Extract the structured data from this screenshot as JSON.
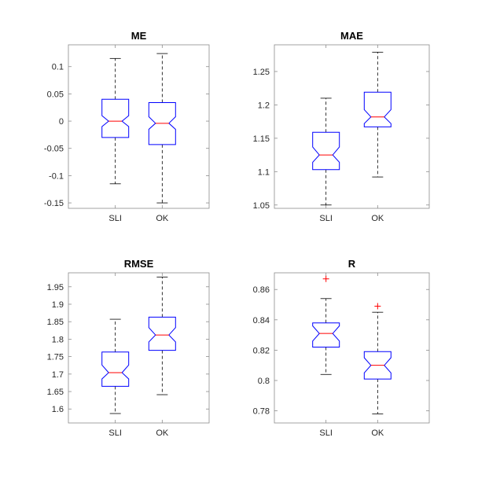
{
  "colors": {
    "box": "#0000ff",
    "median": "#ff0000",
    "whisker": "#000000",
    "outlier": "#ff0000"
  },
  "chart_data": [
    {
      "type": "boxplot",
      "title": "ME",
      "categories": [
        "SLI",
        "OK"
      ],
      "ylim": [
        -0.16,
        0.14
      ],
      "yticks": [
        -0.15,
        -0.1,
        -0.05,
        0,
        0.05,
        0.1
      ],
      "ytick_labels": [
        "-0.15",
        "-0.1",
        "-0.05",
        "0",
        "0.05",
        "0.1"
      ],
      "boxes": [
        {
          "whisker_low": -0.115,
          "q1": -0.03,
          "median": 0.0,
          "q3": 0.04,
          "whisker_high": 0.115,
          "notch_low": -0.01,
          "notch_high": 0.01,
          "outliers": []
        },
        {
          "whisker_low": -0.15,
          "q1": -0.043,
          "median": -0.004,
          "q3": 0.034,
          "whisker_high": 0.124,
          "notch_low": -0.015,
          "notch_high": 0.008,
          "outliers": []
        }
      ]
    },
    {
      "type": "boxplot",
      "title": "MAE",
      "categories": [
        "SLI",
        "OK"
      ],
      "ylim": [
        1.045,
        1.29
      ],
      "yticks": [
        1.05,
        1.1,
        1.15,
        1.2,
        1.25
      ],
      "ytick_labels": [
        "1.05",
        "1.1",
        "1.15",
        "1.2",
        "1.25"
      ],
      "boxes": [
        {
          "whisker_low": 1.05,
          "q1": 1.103,
          "median": 1.125,
          "q3": 1.159,
          "whisker_high": 1.21,
          "notch_low": 1.114,
          "notch_high": 1.137,
          "outliers": []
        },
        {
          "whisker_low": 1.092,
          "q1": 1.167,
          "median": 1.182,
          "q3": 1.219,
          "whisker_high": 1.279,
          "notch_low": 1.172,
          "notch_high": 1.193,
          "outliers": []
        }
      ]
    },
    {
      "type": "boxplot",
      "title": "RMSE",
      "categories": [
        "SLI",
        "OK"
      ],
      "ylim": [
        1.56,
        1.99
      ],
      "yticks": [
        1.6,
        1.65,
        1.7,
        1.75,
        1.8,
        1.85,
        1.9,
        1.95
      ],
      "ytick_labels": [
        "1.6",
        "1.65",
        "1.7",
        "1.75",
        "1.8",
        "1.85",
        "1.9",
        "1.95"
      ],
      "boxes": [
        {
          "whisker_low": 1.587,
          "q1": 1.665,
          "median": 1.704,
          "q3": 1.763,
          "whisker_high": 1.857,
          "notch_low": 1.686,
          "notch_high": 1.726,
          "outliers": []
        },
        {
          "whisker_low": 1.641,
          "q1": 1.768,
          "median": 1.812,
          "q3": 1.863,
          "whisker_high": 1.978,
          "notch_low": 1.792,
          "notch_high": 1.833,
          "outliers": []
        }
      ]
    },
    {
      "type": "boxplot",
      "title": "R",
      "categories": [
        "SLI",
        "OK"
      ],
      "ylim": [
        0.772,
        0.871
      ],
      "yticks": [
        0.78,
        0.8,
        0.82,
        0.84,
        0.86
      ],
      "ytick_labels": [
        "0.78",
        "0.8",
        "0.82",
        "0.84",
        "0.86"
      ],
      "boxes": [
        {
          "whisker_low": 0.804,
          "q1": 0.822,
          "median": 0.831,
          "q3": 0.838,
          "whisker_high": 0.854,
          "notch_low": 0.826,
          "notch_high": 0.836,
          "outliers": [
            0.867
          ]
        },
        {
          "whisker_low": 0.778,
          "q1": 0.801,
          "median": 0.81,
          "q3": 0.819,
          "whisker_high": 0.845,
          "notch_low": 0.805,
          "notch_high": 0.815,
          "outliers": [
            0.849
          ]
        }
      ]
    }
  ]
}
